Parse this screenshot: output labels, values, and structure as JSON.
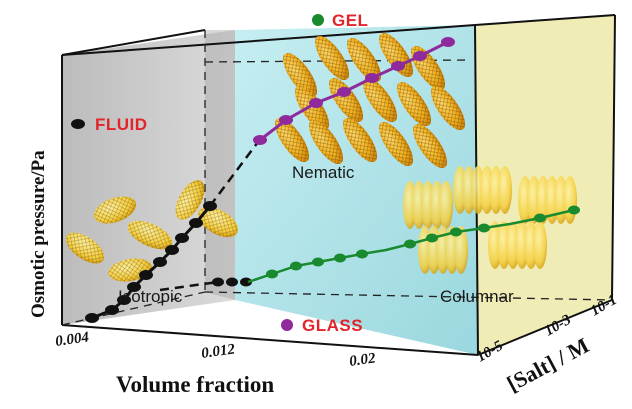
{
  "legend": {
    "gel": "GEL",
    "fluid": "FLUID",
    "glass": "GLASS"
  },
  "phases": {
    "nematic": "Nematic",
    "isotropic": "Isotropic",
    "columnar": "Columnar"
  },
  "axes": {
    "y_label": "Osmotic pressure/Pa",
    "x_label": "Volume fraction",
    "z_label": "[Salt] / M",
    "x_ticks": [
      "0.004",
      "0.012",
      "0.02"
    ],
    "z_ticks": [
      "10-5",
      "10-3",
      "10-1"
    ]
  },
  "colors": {
    "gel_marker": "#1a8a2e",
    "glass_marker": "#8e2a9c",
    "fluid_marker": "#111111",
    "label_red": "#e3242b",
    "left_panel": "#c7c7c7",
    "middle_panel": "#a9e0e6",
    "right_panel": "#ece9a8",
    "particle": "#f4b321"
  }
}
